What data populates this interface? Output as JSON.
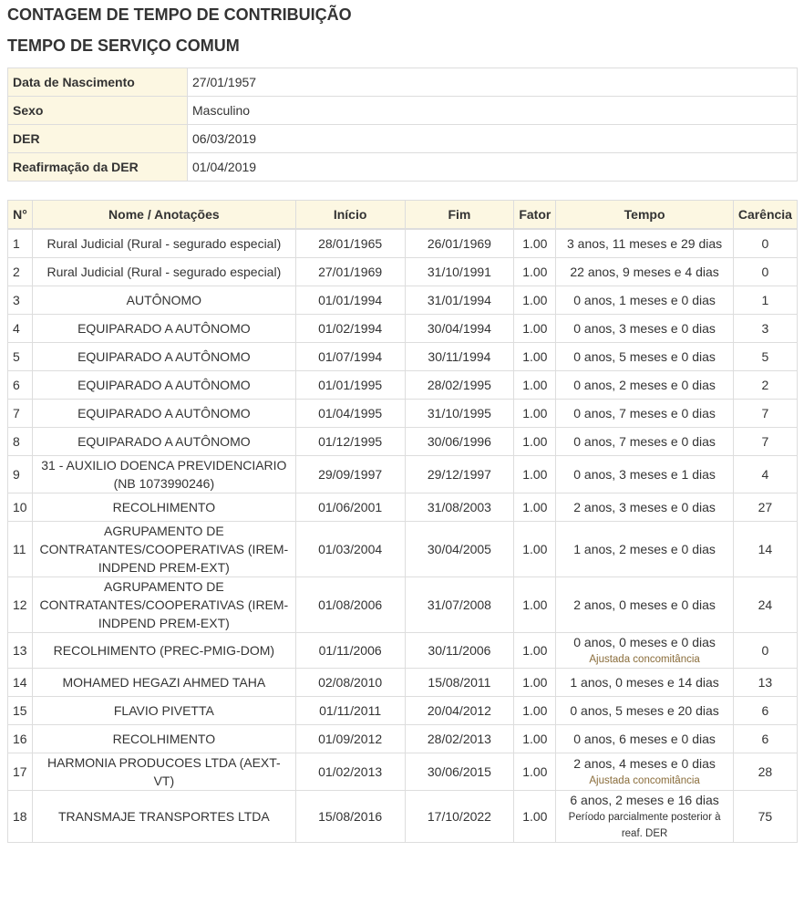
{
  "title": "CONTAGEM DE TEMPO DE CONTRIBUIÇÃO",
  "subtitle": "TEMPO DE SERVIÇO COMUM",
  "info": [
    {
      "label": "Data de Nascimento",
      "value": "27/01/1957"
    },
    {
      "label": "Sexo",
      "value": "Masculino"
    },
    {
      "label": "DER",
      "value": "06/03/2019"
    },
    {
      "label": "Reafirmação da DER",
      "value": "01/04/2019"
    }
  ],
  "columns": [
    "N°",
    "Nome / Anotações",
    "Início",
    "Fim",
    "Fator",
    "Tempo",
    "Carência"
  ],
  "note_color": "#8a6d3b",
  "rows": [
    {
      "n": "1",
      "nome": "Rural Judicial (Rural - segurado especial)",
      "inicio": "28/01/1965",
      "fim": "26/01/1969",
      "fator": "1.00",
      "tempo": "3 anos, 11 meses e 29 dias",
      "carencia": "0"
    },
    {
      "n": "2",
      "nome": "Rural Judicial (Rural - segurado especial)",
      "inicio": "27/01/1969",
      "fim": "31/10/1991",
      "fator": "1.00",
      "tempo": "22 anos, 9 meses e 4 dias",
      "carencia": "0"
    },
    {
      "n": "3",
      "nome": "AUTÔNOMO",
      "inicio": "01/01/1994",
      "fim": "31/01/1994",
      "fator": "1.00",
      "tempo": "0 anos, 1 meses e 0 dias",
      "carencia": "1"
    },
    {
      "n": "4",
      "nome": "EQUIPARADO A AUTÔNOMO",
      "inicio": "01/02/1994",
      "fim": "30/04/1994",
      "fator": "1.00",
      "tempo": "0 anos, 3 meses e 0 dias",
      "carencia": "3"
    },
    {
      "n": "5",
      "nome": "EQUIPARADO A AUTÔNOMO",
      "inicio": "01/07/1994",
      "fim": "30/11/1994",
      "fator": "1.00",
      "tempo": "0 anos, 5 meses e 0 dias",
      "carencia": "5"
    },
    {
      "n": "6",
      "nome": "EQUIPARADO A AUTÔNOMO",
      "inicio": "01/01/1995",
      "fim": "28/02/1995",
      "fator": "1.00",
      "tempo": "0 anos, 2 meses e 0 dias",
      "carencia": "2"
    },
    {
      "n": "7",
      "nome": "EQUIPARADO A AUTÔNOMO",
      "inicio": "01/04/1995",
      "fim": "31/10/1995",
      "fator": "1.00",
      "tempo": "0 anos, 7 meses e 0 dias",
      "carencia": "7"
    },
    {
      "n": "8",
      "nome": "EQUIPARADO A AUTÔNOMO",
      "inicio": "01/12/1995",
      "fim": "30/06/1996",
      "fator": "1.00",
      "tempo": "0 anos, 7 meses e 0 dias",
      "carencia": "7"
    },
    {
      "n": "9",
      "nome": "31 - AUXILIO DOENCA PREVIDENCIARIO (NB 1073990246)",
      "inicio": "29/09/1997",
      "fim": "29/12/1997",
      "fator": "1.00",
      "tempo": "0 anos, 3 meses e 1 dias",
      "carencia": "4"
    },
    {
      "n": "10",
      "nome": "RECOLHIMENTO",
      "inicio": "01/06/2001",
      "fim": "31/08/2003",
      "fator": "1.00",
      "tempo": "2 anos, 3 meses e 0 dias",
      "carencia": "27"
    },
    {
      "n": "11",
      "nome": "AGRUPAMENTO DE CONTRATANTES/COOPERATIVAS (IREM-INDPEND PREM-EXT)",
      "inicio": "01/03/2004",
      "fim": "30/04/2005",
      "fator": "1.00",
      "tempo": "1 anos, 2 meses e 0 dias",
      "carencia": "14"
    },
    {
      "n": "12",
      "nome": "AGRUPAMENTO DE CONTRATANTES/COOPERATIVAS (IREM-INDPEND PREM-EXT)",
      "inicio": "01/08/2006",
      "fim": "31/07/2008",
      "fator": "1.00",
      "tempo": "2 anos, 0 meses e 0 dias",
      "carencia": "24"
    },
    {
      "n": "13",
      "nome": "RECOLHIMENTO (PREC-PMIG-DOM)",
      "inicio": "01/11/2006",
      "fim": "30/11/2006",
      "fator": "1.00",
      "tempo": "0 anos, 0 meses e 0 dias",
      "nota": "Ajustada concomitância",
      "nota_tipo": "warn",
      "carencia": "0"
    },
    {
      "n": "14",
      "nome": "MOHAMED HEGAZI AHMED TAHA",
      "inicio": "02/08/2010",
      "fim": "15/08/2011",
      "fator": "1.00",
      "tempo": "1 anos, 0 meses e 14 dias",
      "carencia": "13"
    },
    {
      "n": "15",
      "nome": "FLAVIO PIVETTA",
      "inicio": "01/11/2011",
      "fim": "20/04/2012",
      "fator": "1.00",
      "tempo": "0 anos, 5 meses e 20 dias",
      "carencia": "6"
    },
    {
      "n": "16",
      "nome": "RECOLHIMENTO",
      "inicio": "01/09/2012",
      "fim": "28/02/2013",
      "fator": "1.00",
      "tempo": "0 anos, 6 meses e 0 dias",
      "carencia": "6"
    },
    {
      "n": "17",
      "nome": "HARMONIA PRODUCOES LTDA (AEXT-VT)",
      "inicio": "01/02/2013",
      "fim": "30/06/2015",
      "fator": "1.00",
      "tempo": "2 anos, 4 meses e 0 dias",
      "nota": "Ajustada concomitância",
      "nota_tipo": "warn",
      "carencia": "28"
    },
    {
      "n": "18",
      "nome": "TRANSMAJE TRANSPORTES LTDA",
      "inicio": "15/08/2016",
      "fim": "17/10/2022",
      "fator": "1.00",
      "tempo": "6 anos, 2 meses e 16 dias",
      "nota": "Período parcialmente posterior à reaf. DER",
      "nota_tipo": "info2",
      "carencia": "75"
    }
  ]
}
